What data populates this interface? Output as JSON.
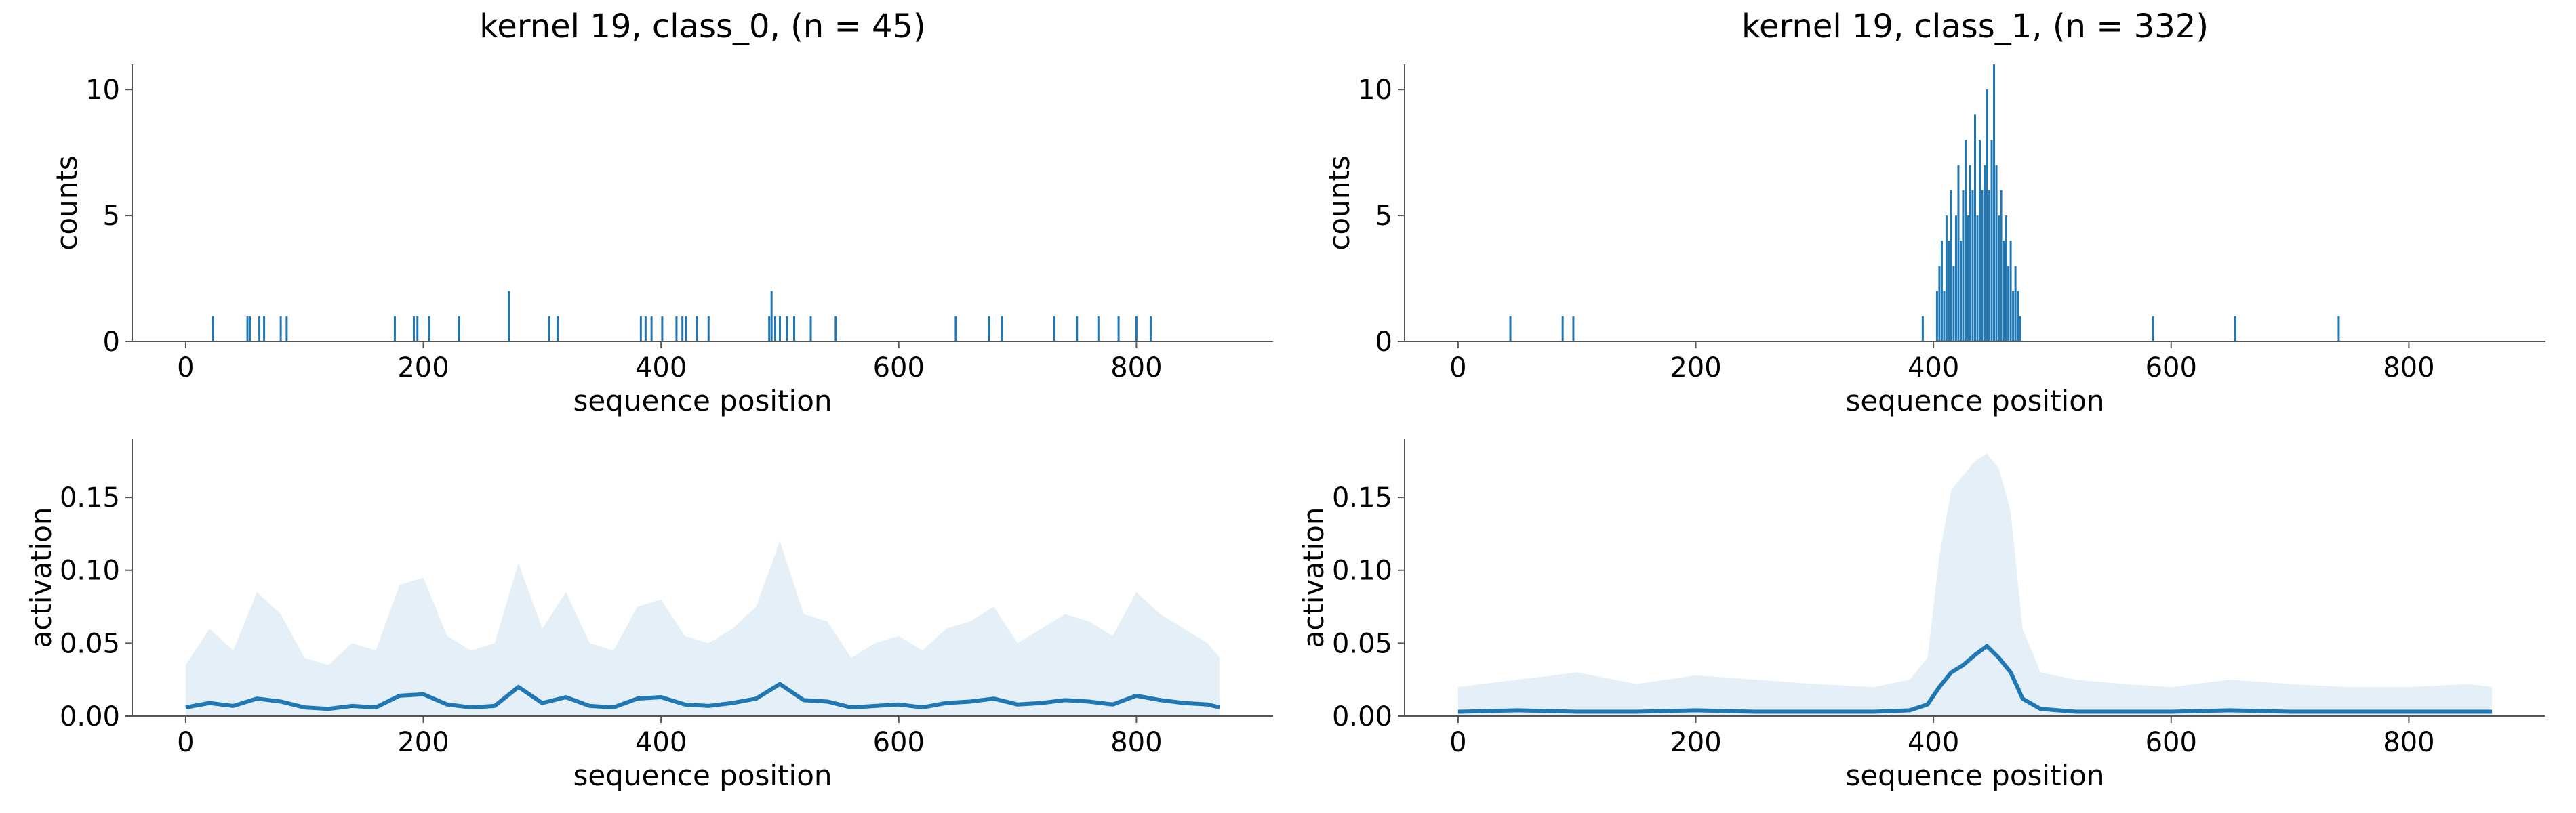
{
  "chart_data": [
    {
      "panel": "class_0-counts",
      "type": "bar",
      "title": "kernel 19, class_0, (n = 45)",
      "xlabel": "sequence position",
      "ylabel": "counts",
      "xlim": [
        -45,
        915
      ],
      "ylim": [
        0,
        11
      ],
      "xticks": [
        0,
        200,
        400,
        600,
        800
      ],
      "yticks": [
        0,
        5,
        10
      ],
      "color": "#1f77b4",
      "x": [
        23,
        52,
        54,
        62,
        66,
        80,
        85,
        176,
        192,
        195,
        205,
        230,
        272,
        306,
        313,
        383,
        387,
        392,
        401,
        413,
        418,
        421,
        430,
        440,
        491,
        493,
        496,
        500,
        506,
        512,
        526,
        547,
        648,
        676,
        687,
        731,
        750,
        768,
        785,
        800,
        812
      ],
      "values": [
        1,
        1,
        1,
        1,
        1,
        1,
        1,
        1,
        1,
        1,
        1,
        1,
        2,
        1,
        1,
        1,
        1,
        1,
        1,
        1,
        1,
        1,
        1,
        1,
        1,
        2,
        1,
        1,
        1,
        1,
        1,
        1,
        1,
        1,
        1,
        1,
        1,
        1,
        1,
        1,
        1
      ]
    },
    {
      "panel": "class_1-counts",
      "type": "bar",
      "title": "kernel 19, class_1, (n = 332)",
      "xlabel": "sequence position",
      "ylabel": "counts",
      "xlim": [
        -45,
        915
      ],
      "ylim": [
        0,
        11
      ],
      "xticks": [
        0,
        200,
        400,
        600,
        800
      ],
      "yticks": [
        0,
        5,
        10
      ],
      "color": "#1f77b4",
      "x": [
        44,
        88,
        97,
        391,
        403,
        405,
        407,
        409,
        411,
        413,
        415,
        417,
        419,
        421,
        423,
        425,
        427,
        429,
        431,
        433,
        435,
        437,
        439,
        441,
        443,
        445,
        447,
        449,
        451,
        453,
        455,
        457,
        459,
        461,
        463,
        465,
        467,
        469,
        471,
        473,
        585,
        654,
        741
      ],
      "values": [
        1,
        1,
        1,
        1,
        2,
        3,
        4,
        2,
        5,
        4,
        6,
        3,
        5,
        7,
        4,
        6,
        8,
        5,
        7,
        6,
        9,
        5,
        8,
        6,
        7,
        10,
        6,
        8,
        11,
        7,
        5,
        6,
        4,
        5,
        3,
        4,
        2,
        3,
        2,
        1,
        1,
        1,
        1
      ]
    },
    {
      "panel": "class_0-activation",
      "type": "line",
      "xlabel": "sequence position",
      "ylabel": "activation",
      "xlim": [
        -45,
        915
      ],
      "ylim": [
        0,
        0.19
      ],
      "xticks": [
        0,
        200,
        400,
        600,
        800
      ],
      "yticks": [
        0.0,
        0.05,
        0.1,
        0.15
      ],
      "ytick_labels": [
        "0.00",
        "0.05",
        "0.10",
        "0.15"
      ],
      "color": "#1f77b4",
      "band_color": "#c6dbef",
      "x": [
        0,
        20,
        40,
        60,
        80,
        100,
        120,
        140,
        160,
        180,
        200,
        220,
        240,
        260,
        280,
        300,
        320,
        340,
        360,
        380,
        400,
        420,
        440,
        460,
        480,
        500,
        520,
        540,
        560,
        580,
        600,
        620,
        640,
        660,
        680,
        700,
        720,
        740,
        760,
        780,
        800,
        820,
        840,
        860,
        870
      ],
      "mean": [
        0.006,
        0.009,
        0.007,
        0.012,
        0.01,
        0.006,
        0.005,
        0.007,
        0.006,
        0.014,
        0.015,
        0.008,
        0.006,
        0.007,
        0.02,
        0.009,
        0.013,
        0.007,
        0.006,
        0.012,
        0.013,
        0.008,
        0.007,
        0.009,
        0.012,
        0.022,
        0.011,
        0.01,
        0.006,
        0.007,
        0.008,
        0.006,
        0.009,
        0.01,
        0.012,
        0.008,
        0.009,
        0.011,
        0.01,
        0.008,
        0.014,
        0.011,
        0.009,
        0.008,
        0.006
      ],
      "upper": [
        0.035,
        0.06,
        0.045,
        0.085,
        0.07,
        0.04,
        0.035,
        0.05,
        0.045,
        0.09,
        0.095,
        0.055,
        0.045,
        0.05,
        0.105,
        0.06,
        0.085,
        0.05,
        0.045,
        0.075,
        0.08,
        0.055,
        0.05,
        0.06,
        0.075,
        0.12,
        0.07,
        0.065,
        0.04,
        0.05,
        0.055,
        0.045,
        0.06,
        0.065,
        0.075,
        0.05,
        0.06,
        0.07,
        0.065,
        0.055,
        0.085,
        0.07,
        0.06,
        0.05,
        0.04
      ]
    },
    {
      "panel": "class_1-activation",
      "type": "line",
      "xlabel": "sequence position",
      "ylabel": "activation",
      "xlim": [
        -45,
        915
      ],
      "ylim": [
        0,
        0.19
      ],
      "xticks": [
        0,
        200,
        400,
        600,
        800
      ],
      "yticks": [
        0.0,
        0.05,
        0.1,
        0.15
      ],
      "ytick_labels": [
        "0.00",
        "0.05",
        "0.10",
        "0.15"
      ],
      "color": "#1f77b4",
      "band_color": "#c6dbef",
      "x": [
        0,
        50,
        100,
        150,
        200,
        250,
        300,
        350,
        380,
        395,
        405,
        415,
        425,
        435,
        445,
        455,
        465,
        475,
        490,
        520,
        560,
        600,
        650,
        700,
        750,
        800,
        850,
        870
      ],
      "mean": [
        0.003,
        0.004,
        0.003,
        0.003,
        0.004,
        0.003,
        0.003,
        0.003,
        0.004,
        0.008,
        0.02,
        0.03,
        0.035,
        0.042,
        0.048,
        0.04,
        0.03,
        0.012,
        0.005,
        0.003,
        0.003,
        0.003,
        0.004,
        0.003,
        0.003,
        0.003,
        0.003,
        0.003
      ],
      "upper": [
        0.02,
        0.025,
        0.03,
        0.022,
        0.028,
        0.025,
        0.022,
        0.02,
        0.025,
        0.04,
        0.11,
        0.155,
        0.165,
        0.175,
        0.18,
        0.17,
        0.14,
        0.06,
        0.03,
        0.025,
        0.022,
        0.02,
        0.025,
        0.022,
        0.02,
        0.02,
        0.022,
        0.02
      ]
    }
  ]
}
